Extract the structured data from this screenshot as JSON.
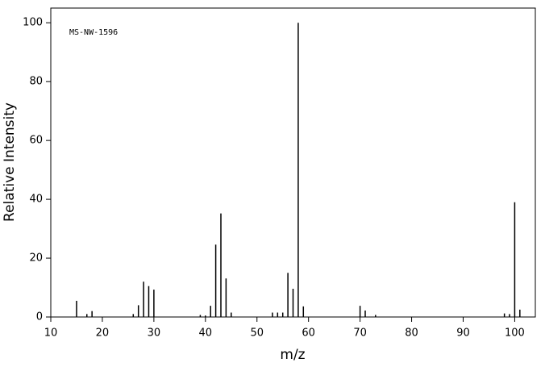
{
  "chart_data": {
    "type": "stem",
    "annotation": "MS-NW-1596",
    "x_label": "m/z",
    "y_label": "Relative Intensity",
    "x": [
      15,
      17,
      18,
      26,
      27,
      28,
      29,
      30,
      39,
      40,
      41,
      42,
      43,
      44,
      45,
      53,
      54,
      55,
      56,
      57,
      58,
      59,
      70,
      71,
      73,
      98,
      99,
      100,
      101
    ],
    "values": [
      5.5,
      1,
      2,
      1,
      4,
      12,
      10.5,
      9.3,
      0.7,
      0.5,
      3.8,
      24.6,
      35.2,
      13.1,
      1.5,
      1.5,
      1.5,
      1.5,
      15,
      9.6,
      100,
      3.6,
      3.8,
      2.2,
      0.7,
      1.2,
      1,
      39,
      2.5
    ],
    "color": "#000000",
    "xlim": [
      10,
      104
    ],
    "xticks": [
      10,
      20,
      30,
      40,
      50,
      60,
      70,
      80,
      90,
      100
    ],
    "ylim": [
      0,
      105
    ],
    "yticks": [
      0,
      20,
      40,
      60,
      80,
      100
    ]
  }
}
